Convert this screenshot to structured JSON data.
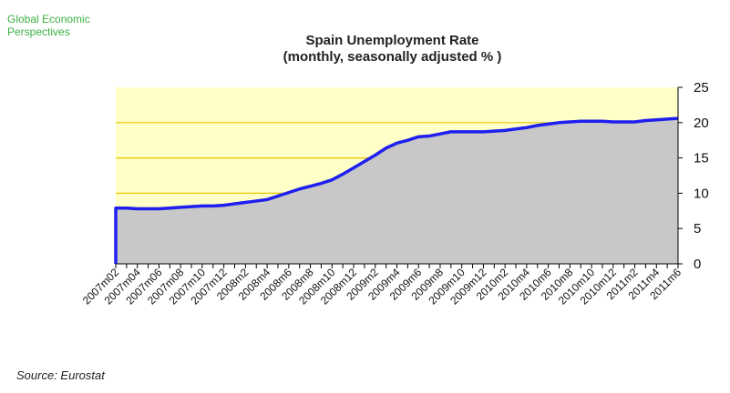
{
  "header": {
    "brand_line1": "Global Economic",
    "brand_line2": "Perspectives"
  },
  "footer": {
    "source": "Source: Eurostat"
  },
  "colors": {
    "plot_background": "#ffffc8",
    "area_fill": "#c8c8c8",
    "line": "#1f1ff0",
    "grid": "#e8c800",
    "brand": "#3cb043"
  },
  "chart_data": {
    "type": "area",
    "title": "Spain Unemployment Rate",
    "subtitle": "(monthly, seasonally adjusted % )",
    "xlabel": "",
    "ylabel": "",
    "ylim": [
      0,
      25
    ],
    "yticks": [
      0,
      5,
      10,
      15,
      20,
      25
    ],
    "grid": true,
    "legend": "none",
    "x": [
      "2007m02",
      "2007m03",
      "2007m04",
      "2007m05",
      "2007m06",
      "2007m07",
      "2007m08",
      "2007m09",
      "2007m10",
      "2007m11",
      "2007m12",
      "2008m1",
      "2008m2",
      "2008m3",
      "2008m4",
      "2008m5",
      "2008m6",
      "2008m7",
      "2008m8",
      "2008m9",
      "2008m10",
      "2008m11",
      "2008m12",
      "2009m1",
      "2009m2",
      "2009m3",
      "2009m4",
      "2009m5",
      "2009m6",
      "2009m7",
      "2009m8",
      "2009m9",
      "2009m10",
      "2009m11",
      "2009m12",
      "2010m1",
      "2010m2",
      "2010m3",
      "2010m4",
      "2010m5",
      "2010m6",
      "2010m7",
      "2010m8",
      "2010m9",
      "2010m10",
      "2010m11",
      "2010m12",
      "2011m1",
      "2011m2",
      "2011m3",
      "2011m4",
      "2011m5",
      "2011m6"
    ],
    "x_tick_labels": [
      "2007m02",
      "2007m04",
      "2007m06",
      "2007m08",
      "2007m10",
      "2007m12",
      "2008m2",
      "2008m4",
      "2008m6",
      "2008m8",
      "2008m10",
      "2008m12",
      "2009m2",
      "2009m4",
      "2009m6",
      "2009m8",
      "2009m10",
      "2009m12",
      "2010m2",
      "2010m4",
      "2010m6",
      "2010m8",
      "2010m10",
      "2010m12",
      "2011m2",
      "2011m4",
      "2011m6"
    ],
    "values": [
      7.9,
      7.9,
      7.8,
      7.8,
      7.8,
      7.9,
      8.0,
      8.1,
      8.2,
      8.2,
      8.3,
      8.5,
      8.7,
      8.9,
      9.1,
      9.6,
      10.1,
      10.6,
      11.0,
      11.4,
      11.9,
      12.7,
      13.6,
      14.5,
      15.4,
      16.4,
      17.1,
      17.5,
      18.0,
      18.1,
      18.4,
      18.7,
      18.7,
      18.7,
      18.7,
      18.8,
      18.9,
      19.1,
      19.3,
      19.6,
      19.8,
      20.0,
      20.1,
      20.2,
      20.2,
      20.2,
      20.1,
      20.1,
      20.1,
      20.3,
      20.4,
      20.5,
      20.6
    ]
  }
}
